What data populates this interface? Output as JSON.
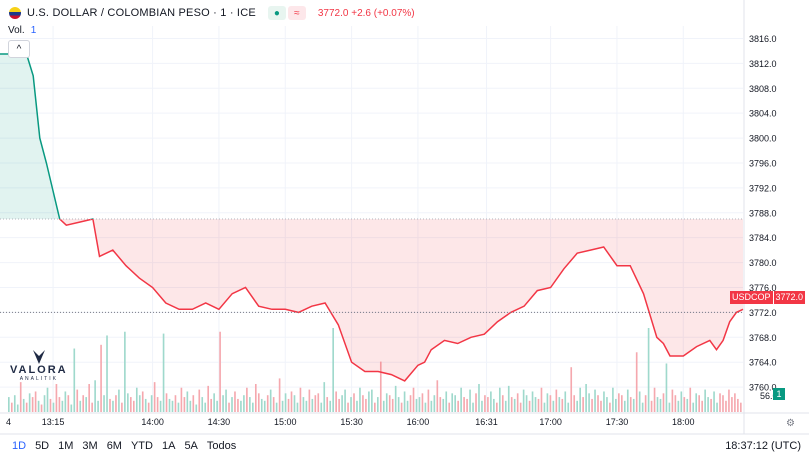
{
  "header": {
    "title": "U.S. DOLLAR / COLOMBIAN PESO · 1 · ICE",
    "badge_1": "●",
    "badge_2": "≈",
    "price_info": "3772.0 +2.6 (+0.07%)"
  },
  "volume_label": {
    "label": "Vol.",
    "value": "1"
  },
  "collapse_symbol": "^",
  "logo": {
    "name": "VALORA",
    "sub": "ANALITIK"
  },
  "toolbar": {
    "ranges": [
      "1D",
      "5D",
      "1M",
      "3M",
      "6M",
      "YTD",
      "1A",
      "5A",
      "Todos"
    ],
    "active": "1D"
  },
  "clock": "18:37:12 (UTC)",
  "settings_icon": "⚙",
  "last_price": {
    "symbol": "USDCOP",
    "value": "3772.0"
  },
  "volume_badge": "1",
  "colors": {
    "up": "#089981",
    "down": "#f23645",
    "grid": "#f0f3fa",
    "axis_text": "#131722"
  },
  "chart_data": {
    "type": "line",
    "symbol": "USDCOP",
    "ylim": [
      3756,
      3818
    ],
    "y_ticks": [
      3760,
      3764,
      3768,
      3772,
      3776,
      3780,
      3784,
      3788,
      3792,
      3796,
      3800,
      3804,
      3808,
      3812,
      3816
    ],
    "y_tick_labels": [
      "3760.0",
      "3764.0",
      "3768.0",
      "3772.0",
      "3776.0",
      "3780.0",
      "3784.0",
      "3788.0",
      "3792.0",
      "3796.0",
      "3800.0",
      "3804.0",
      "3808.0",
      "3812.0",
      "3816.0"
    ],
    "y_bottom_partial_label": "56.0",
    "x_range": [
      12.85,
      18.45
    ],
    "x_ticks": [
      13.25,
      14.0,
      14.5,
      15.0,
      15.5,
      16.0,
      16.517,
      17.0,
      17.5,
      18.0
    ],
    "x_tick_labels": [
      "13:15",
      "14:00",
      "14:30",
      "15:00",
      "15:30",
      "16:00",
      "16:31",
      "17:00",
      "17:30",
      "18:00"
    ],
    "x_left_partial_label": "4",
    "reference_price": 3787.0,
    "last_price": 3772.0,
    "grid": true,
    "x": [
      12.85,
      12.95,
      13.05,
      13.1,
      13.15,
      13.2,
      13.3,
      13.35,
      13.45,
      13.55,
      13.6,
      13.7,
      13.8,
      13.9,
      14.0,
      14.1,
      14.2,
      14.3,
      14.4,
      14.5,
      14.6,
      14.7,
      14.8,
      14.9,
      15.0,
      15.1,
      15.2,
      15.3,
      15.4,
      15.5,
      15.6,
      15.7,
      15.8,
      15.9,
      16.0,
      16.05,
      16.1,
      16.2,
      16.3,
      16.4,
      16.5,
      16.6,
      16.7,
      16.8,
      16.9,
      17.0,
      17.1,
      17.2,
      17.3,
      17.4,
      17.5,
      17.6,
      17.7,
      17.8,
      17.85,
      17.9,
      18.0,
      18.1,
      18.2,
      18.25,
      18.3,
      18.35,
      18.4,
      18.45
    ],
    "y": [
      3813.5,
      3813.5,
      3813.5,
      3810,
      3800,
      3796,
      3787,
      3786,
      3786.5,
      3787,
      3781,
      3782,
      3779.5,
      3777.5,
      3776,
      3773.5,
      3772.5,
      3772.5,
      3773.5,
      3772.5,
      3775,
      3776,
      3773,
      3772.5,
      3772.5,
      3772,
      3773,
      3773.5,
      3770,
      3764,
      3762.5,
      3762.5,
      3762,
      3761,
      3763.5,
      3764,
      3766,
      3767.5,
      3767,
      3768,
      3768.5,
      3770.5,
      3772,
      3773,
      3775.5,
      3776,
      3779,
      3781.5,
      3782,
      3782.5,
      3779.5,
      3779.5,
      3775,
      3768,
      3767,
      3765,
      3765,
      3766.5,
      3767.5,
      3766,
      3767.5,
      3770.5,
      3772,
      3772.5
    ],
    "volume": {
      "ylim": [
        0,
        6
      ],
      "values": [
        0.8,
        0.5,
        0.9,
        0.4,
        1.6,
        0.7,
        0.5,
        1,
        0.8,
        1.1,
        0.6,
        0.4,
        0.9,
        1.3,
        0.7,
        0.5,
        1.5,
        0.8,
        0.6,
        1.1,
        0.9,
        0.4,
        3.4,
        1.2,
        0.6,
        0.9,
        0.8,
        1.5,
        0.5,
        1.7,
        0.6,
        3.6,
        0.9,
        4.1,
        0.7,
        0.6,
        0.9,
        1.2,
        0.5,
        4.3,
        1,
        0.8,
        0.6,
        1.3,
        0.9,
        1.1,
        0.7,
        0.5,
        0.9,
        1.6,
        0.8,
        0.6,
        4.2,
        1,
        0.7,
        0.6,
        0.9,
        0.5,
        1.3,
        0.8,
        1.1,
        0.6,
        0.9,
        0.4,
        1.2,
        0.8,
        0.5,
        1.4,
        0.7,
        1,
        0.6,
        4.3,
        0.9,
        1.2,
        0.5,
        0.8,
        1.1,
        0.7,
        0.6,
        0.9,
        1.3,
        0.8,
        0.5,
        1.5,
        1,
        0.7,
        0.6,
        0.9,
        1.2,
        0.8,
        0.5,
        1.8,
        0.6,
        1,
        0.7,
        1.1,
        0.9,
        0.5,
        1.3,
        0.8,
        0.6,
        1.2,
        0.7,
        0.9,
        1,
        0.5,
        1.6,
        0.8,
        0.6,
        4.5,
        1.1,
        0.7,
        0.9,
        1.2,
        0.5,
        0.8,
        1,
        0.6,
        1.3,
        0.9,
        0.7,
        1.1,
        1.2,
        0.5,
        0.8,
        2.7,
        0.6,
        1,
        0.9,
        0.7,
        1.4,
        0.8,
        0.5,
        1.1,
        0.6,
        0.9,
        1.3,
        0.7,
        0.8,
        1,
        0.5,
        1.2,
        0.6,
        0.9,
        1.7,
        0.8,
        0.7,
        1.1,
        0.5,
        1,
        0.9,
        0.6,
        1.3,
        0.8,
        0.7,
        1.2,
        0.5,
        1,
        1.5,
        0.6,
        0.9,
        0.8,
        1.1,
        0.7,
        0.5,
        1.3,
        0.9,
        0.6,
        1.4,
        0.8,
        0.7,
        1,
        0.5,
        1.2,
        0.9,
        0.6,
        1.1,
        0.8,
        0.7,
        1.3,
        0.5,
        1,
        0.9,
        0.6,
        1.2,
        0.8,
        0.7,
        1.1,
        0.5,
        2.4,
        0.9,
        0.6,
        1.3,
        0.8,
        1.5,
        1,
        0.7,
        1.2,
        0.9,
        0.6,
        1.1,
        0.8,
        0.5,
        1.3,
        0.7,
        1,
        0.9,
        0.6,
        1.2,
        0.8,
        0.7,
        3.2,
        1.1,
        0.5,
        0.9,
        4.5,
        0.6,
        1.3,
        0.8,
        0.7,
        1,
        2.6,
        0.5,
        1.2,
        0.9,
        0.6,
        1.1,
        0.8,
        0.7,
        1.3,
        0.5,
        1,
        0.9,
        0.6,
        1.2,
        0.8,
        0.7,
        1.1,
        0.5,
        1,
        0.9,
        0.6,
        1.2,
        0.8,
        1,
        0.7,
        0.5
      ],
      "colors": [
        "up",
        "down",
        "up",
        "up",
        "down",
        "up",
        "down",
        "up",
        "down",
        "down",
        "up",
        "down",
        "up",
        "up",
        "down",
        "up",
        "down",
        "down",
        "up",
        "up",
        "down",
        "up",
        "up",
        "down",
        "up",
        "down",
        "up",
        "down",
        "down",
        "up",
        "up",
        "down",
        "up",
        "up",
        "down",
        "up",
        "down",
        "up",
        "down",
        "up",
        "up",
        "down",
        "down",
        "up",
        "up",
        "down",
        "up",
        "down",
        "up",
        "down",
        "down",
        "up",
        "up",
        "down",
        "up",
        "up",
        "down",
        "up",
        "down",
        "down",
        "up",
        "up",
        "down",
        "up",
        "down",
        "up",
        "up",
        "down",
        "down",
        "up",
        "up",
        "down",
        "up",
        "up",
        "down",
        "up",
        "down",
        "down",
        "up",
        "up",
        "down",
        "up",
        "up",
        "down",
        "down",
        "up",
        "up",
        "down",
        "up",
        "down",
        "up",
        "down",
        "up",
        "up",
        "down",
        "down",
        "up",
        "up",
        "down",
        "up",
        "up",
        "down",
        "up",
        "down",
        "down",
        "up",
        "up",
        "down",
        "up",
        "up",
        "down",
        "down",
        "up",
        "up",
        "down",
        "up",
        "down",
        "up",
        "up",
        "down",
        "down",
        "up",
        "up",
        "down",
        "up",
        "down",
        "up",
        "up",
        "down",
        "down",
        "up",
        "up",
        "down",
        "up",
        "up",
        "down",
        "down",
        "up",
        "up",
        "down",
        "up",
        "down",
        "up",
        "up",
        "down",
        "down",
        "up",
        "up",
        "down",
        "up",
        "up",
        "down",
        "up",
        "down",
        "down",
        "up",
        "up",
        "down",
        "up",
        "up",
        "down",
        "down",
        "up",
        "up",
        "down",
        "up",
        "down",
        "up",
        "up",
        "down",
        "up",
        "down",
        "down",
        "up",
        "up",
        "down",
        "up",
        "up",
        "down",
        "down",
        "up",
        "up",
        "down",
        "up",
        "down",
        "up",
        "down",
        "up",
        "up",
        "down",
        "down",
        "up",
        "up",
        "down",
        "up",
        "up",
        "down",
        "up",
        "down",
        "down",
        "up",
        "up",
        "down",
        "up",
        "up",
        "down",
        "down",
        "up",
        "up",
        "down",
        "up",
        "down",
        "up",
        "up",
        "down",
        "up",
        "down",
        "down",
        "up",
        "up",
        "down",
        "up",
        "up",
        "down",
        "down",
        "up",
        "up",
        "down",
        "up",
        "down",
        "up",
        "up",
        "down",
        "down",
        "up",
        "up",
        "down",
        "up",
        "up",
        "down"
      ]
    }
  }
}
